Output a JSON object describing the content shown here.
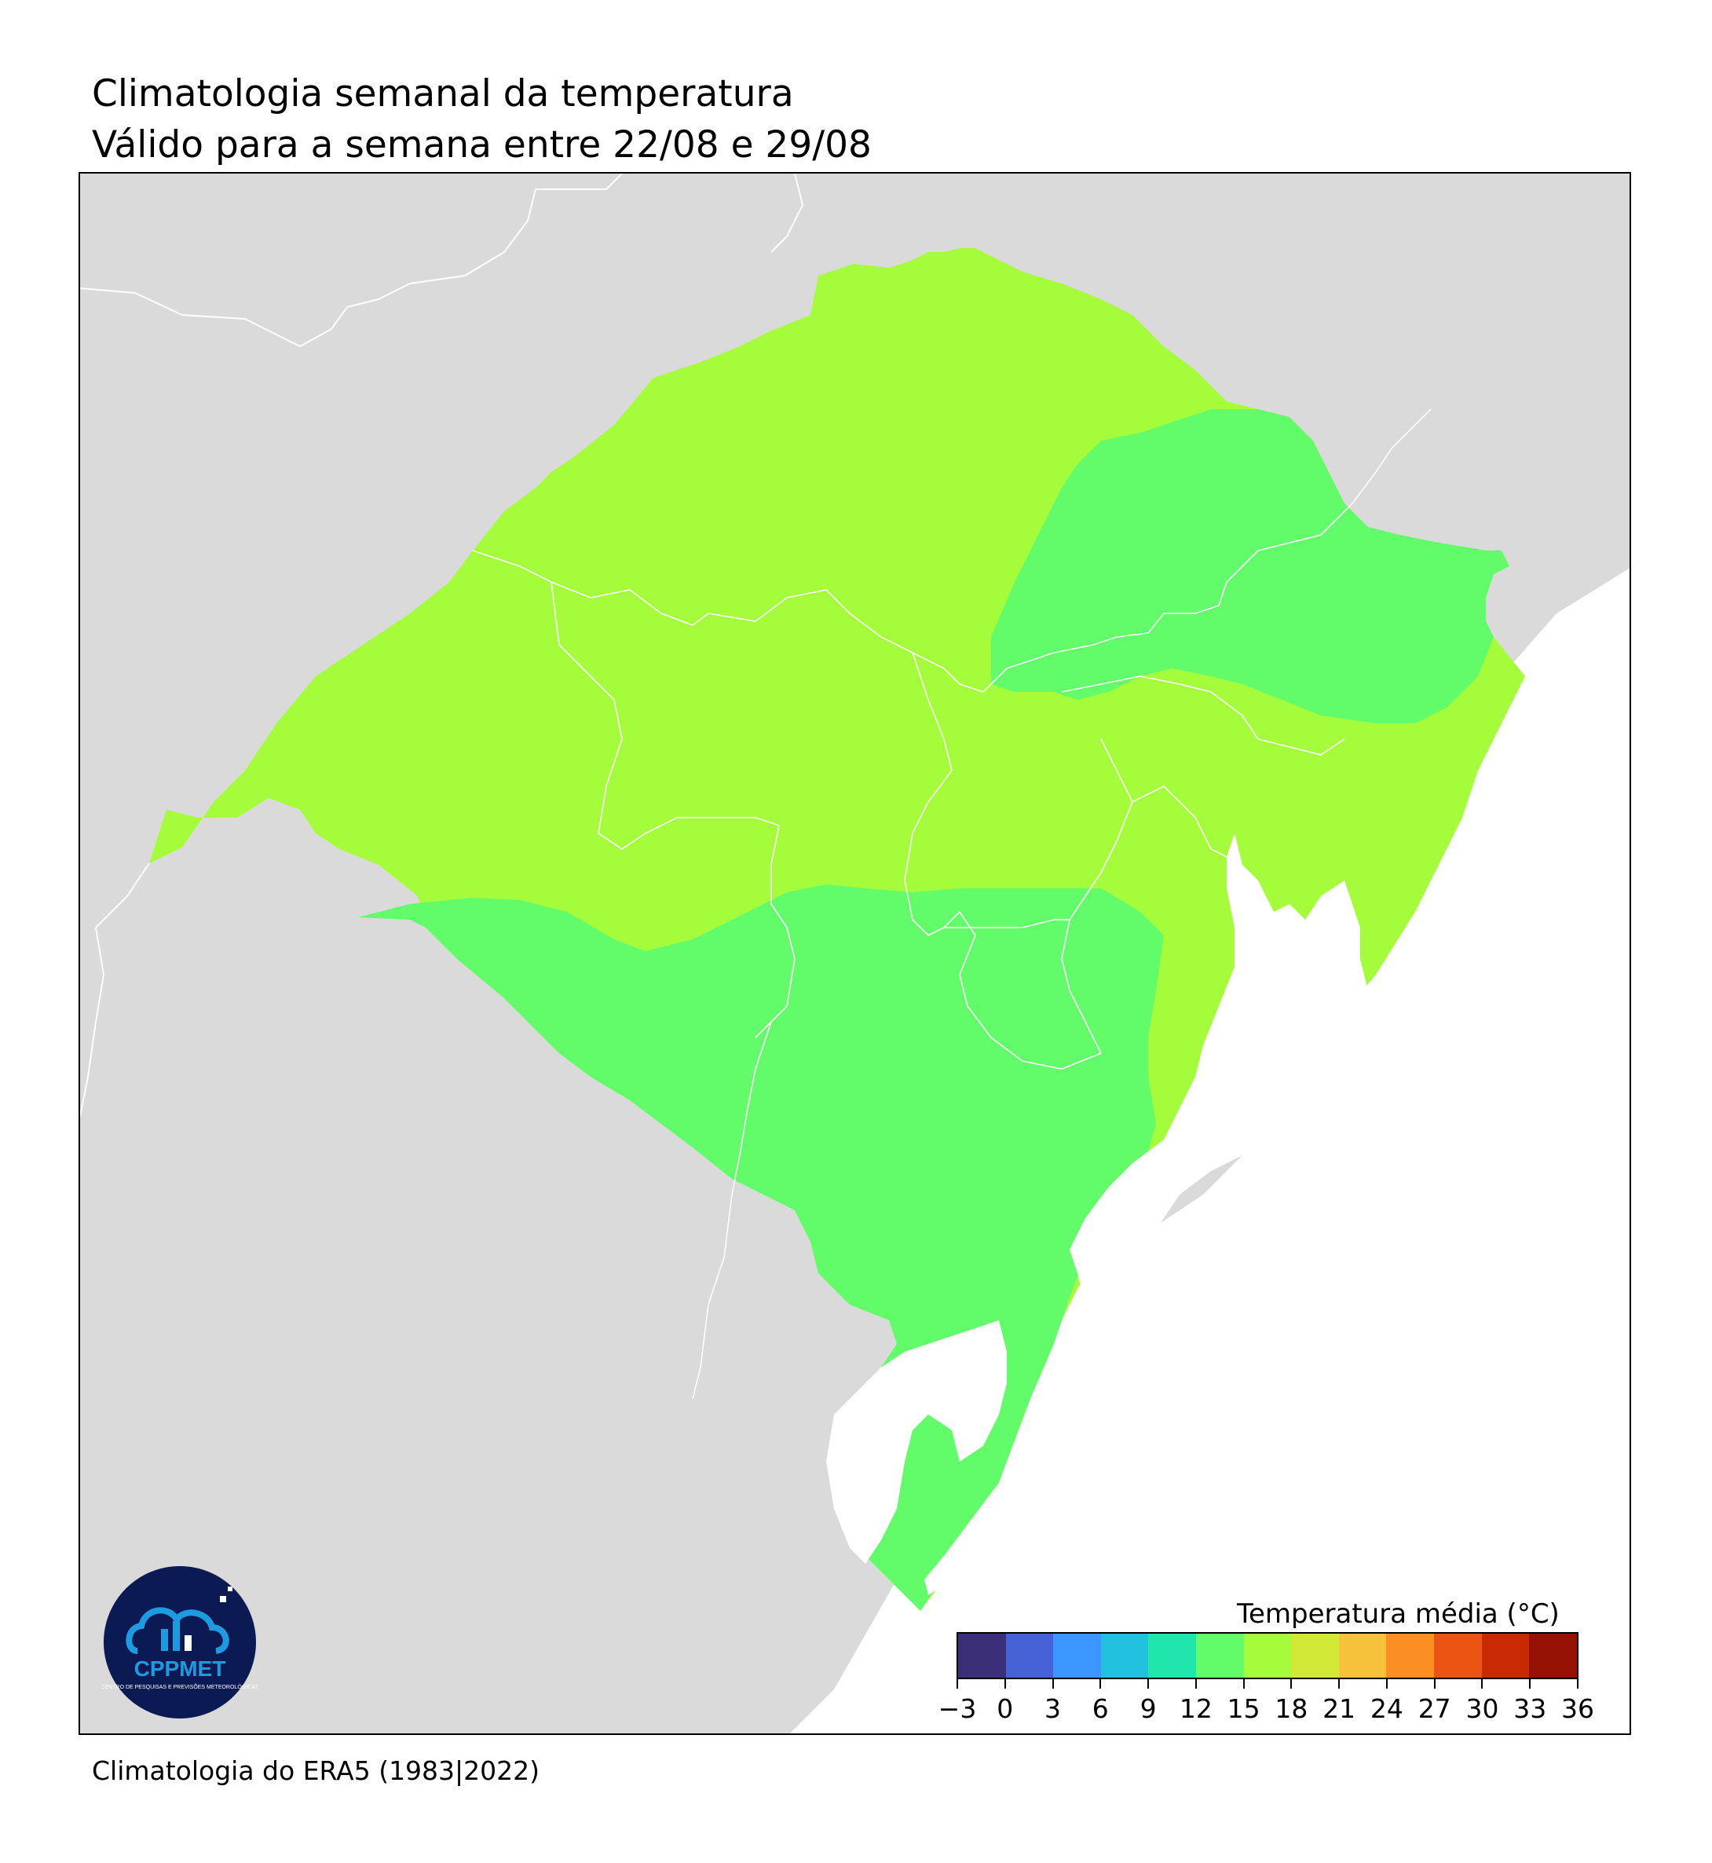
{
  "header": {
    "title": "Climatologia semanal da temperatura",
    "subtitle": "Válido para a semana entre 22/08 e 29/08"
  },
  "footer": {
    "source": "Climatologia do ERA5 (1983|2022)"
  },
  "legend": {
    "title": "Temperatura média (°C)",
    "ticks": [
      "−3",
      "0",
      "3",
      "6",
      "9",
      "12",
      "15",
      "18",
      "21",
      "24",
      "27",
      "30",
      "33",
      "36"
    ],
    "bins": [
      {
        "min": -3,
        "max": 0,
        "color": "#3b2f7a"
      },
      {
        "min": 0,
        "max": 3,
        "color": "#4662d7"
      },
      {
        "min": 3,
        "max": 6,
        "color": "#3d95ff"
      },
      {
        "min": 6,
        "max": 9,
        "color": "#22c1e0"
      },
      {
        "min": 9,
        "max": 12,
        "color": "#1fe6aa"
      },
      {
        "min": 12,
        "max": 15,
        "color": "#62fc6b"
      },
      {
        "min": 15,
        "max": 18,
        "color": "#a4fc3b"
      },
      {
        "min": 18,
        "max": 21,
        "color": "#d1e934"
      },
      {
        "min": 21,
        "max": 24,
        "color": "#f6c23a"
      },
      {
        "min": 24,
        "max": 27,
        "color": "#fb8f23"
      },
      {
        "min": 27,
        "max": 30,
        "color": "#ec5413"
      },
      {
        "min": 30,
        "max": 33,
        "color": "#c92903"
      },
      {
        "min": 33,
        "max": 36,
        "color": "#951103"
      }
    ]
  },
  "map": {
    "regions": [
      {
        "name": "north-central",
        "range": "15-18",
        "color": "#a4fc3b"
      },
      {
        "name": "northeast",
        "range": "12-15",
        "color": "#62fc6b"
      },
      {
        "name": "south",
        "range": "12-15",
        "color": "#62fc6b"
      }
    ],
    "background_color": "#dadada",
    "ocean_color": "#ffffff",
    "border_color": "#ffffff"
  },
  "logo": {
    "text": "CPPMET",
    "subtext": "CENTRO DE PESQUISAS E PREVISÕES METEOROLÓGICAS",
    "color": "#0b1a52",
    "accent": "#1d9be0"
  }
}
